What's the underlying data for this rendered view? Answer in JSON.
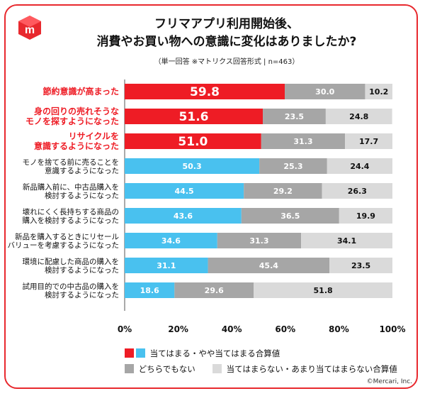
{
  "header": {
    "title_line1": "フリマアプリ利用開始後、",
    "title_line2": "消費やお買い物への意識に変化はありましたか?",
    "subtitle": "（単一回答 ※マトリクス回答形式 | n=463）"
  },
  "colors": {
    "highlight": "#ee1c25",
    "positive": "#49c1ef",
    "neutral": "#a6a6a6",
    "negative": "#dadada",
    "brand": "#e8292e"
  },
  "chart_data": {
    "type": "bar",
    "orientation": "horizontal",
    "stacked": true,
    "categories": [
      "節約意識が高まった",
      "身の回りの売れそうな\nモノを探すようになった",
      "リサイクルを\n意識するようになった",
      "モノを捨てる前に売ることを\n意識するようになった",
      "新品購入前に、中古品購入を\n検討するようになった",
      "壊れにくく長持ちする商品の\n購入を検討するようになった",
      "新品を購入するときにリセール\nバリューを考慮するようになった",
      "環境に配慮した商品の購入を\n検討するようになった",
      "試用目的での中古品の購入を\n検討するようになった"
    ],
    "highlighted_categories": [
      0,
      1,
      2
    ],
    "series": [
      {
        "name": "当てはまる・やや当てはまる合算値",
        "values": [
          59.8,
          51.6,
          51.0,
          50.3,
          44.5,
          43.6,
          34.6,
          31.1,
          18.6
        ]
      },
      {
        "name": "どちらでもない",
        "values": [
          30.0,
          23.5,
          31.3,
          25.3,
          29.2,
          36.5,
          31.3,
          45.4,
          29.6
        ]
      },
      {
        "name": "当てはまらない・あまり当てはまらない合算値",
        "values": [
          10.2,
          24.8,
          17.7,
          24.4,
          26.3,
          19.9,
          34.1,
          23.5,
          51.8
        ]
      }
    ],
    "xlim": [
      0,
      100
    ],
    "xticks": [
      "0%",
      "20%",
      "40%",
      "60%",
      "80%",
      "100%"
    ],
    "legend": [
      {
        "label": "当てはまる・やや当てはまる合算値"
      },
      {
        "label": "どちらでもない"
      },
      {
        "label": "当てはまらない・あまり当てはまらない合算値"
      }
    ]
  },
  "footer": {
    "copyright": "©Mercari, Inc."
  }
}
